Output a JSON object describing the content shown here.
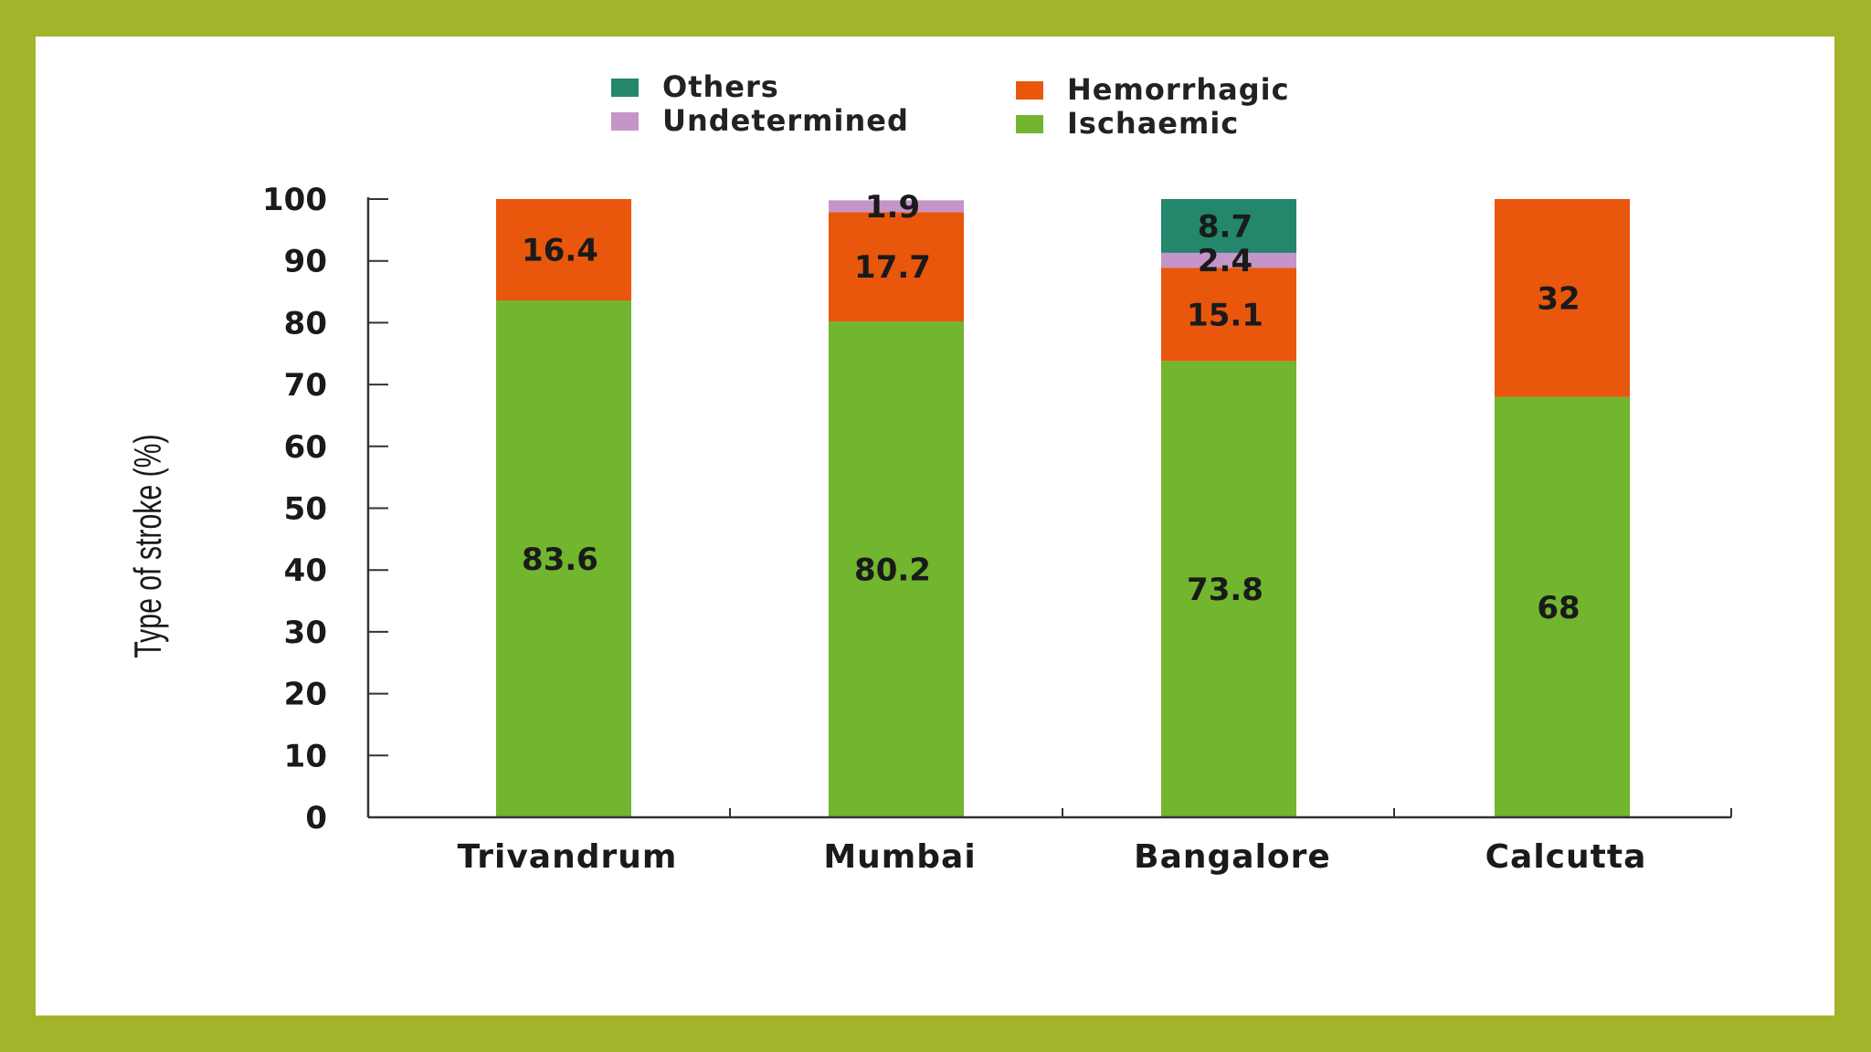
{
  "chart_data": {
    "type": "bar",
    "stacked": true,
    "title": "",
    "xlabel": "",
    "ylabel": "Type of stroke (%)",
    "ylim": [
      0,
      100
    ],
    "yticks": [
      0,
      10,
      20,
      30,
      40,
      50,
      60,
      70,
      80,
      90,
      100
    ],
    "categories": [
      "Trivandrum",
      "Mumbai",
      "Bangalore",
      "Calcutta"
    ],
    "series": [
      {
        "name": "Ischaemic",
        "color": "#72b52e",
        "values": [
          83.6,
          80.2,
          73.8,
          68
        ]
      },
      {
        "name": "Hemorrhagic",
        "color": "#e8570c",
        "values": [
          16.4,
          17.7,
          15.1,
          32
        ]
      },
      {
        "name": "Undetermined",
        "color": "#c595c9",
        "values": [
          0,
          1.9,
          2.4,
          0
        ]
      },
      {
        "name": "Others",
        "color": "#24866a",
        "values": [
          0,
          0,
          8.7,
          0
        ]
      }
    ],
    "legend": {
      "placement": "top",
      "entries": [
        "Others",
        "Hemorrhagic",
        "Undetermined",
        "Ischaemic"
      ]
    }
  }
}
